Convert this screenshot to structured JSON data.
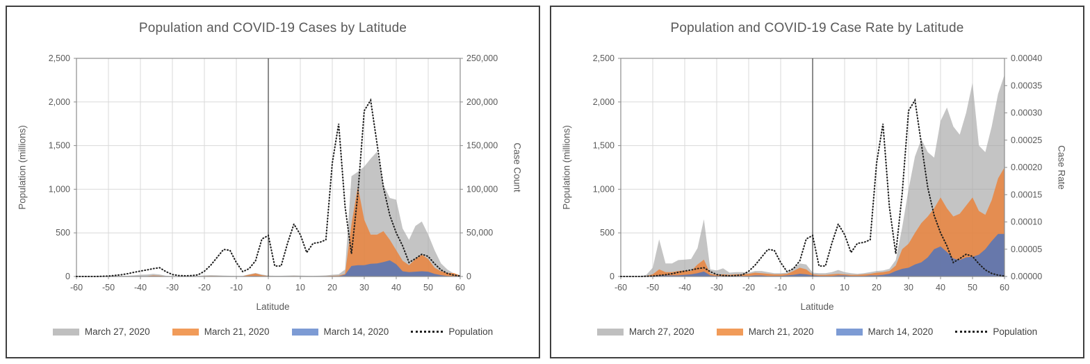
{
  "legend": {
    "items": [
      {
        "label": "March 27, 2020",
        "swatch": "area",
        "color": "#BFBFBF"
      },
      {
        "label": "March 21, 2020",
        "swatch": "area",
        "color": "#F19B59"
      },
      {
        "label": "March 14, 2020",
        "swatch": "area",
        "color": "#7D9BD4"
      },
      {
        "label": "Population",
        "swatch": "dotted",
        "color": "#1F1F1F"
      }
    ]
  },
  "colors": {
    "title_text": "#595959",
    "axis_text": "#595959",
    "grid": "#D9D9D9",
    "plot_border": "#8C8C8C",
    "zero_line": "#404040",
    "area_gray": "rgba(165,165,165,0.65)",
    "area_orange": "rgba(237,125,49,0.78)",
    "area_blue": "rgba(68,114,196,0.78)",
    "population_line": "#1F1F1F"
  },
  "chart_data": [
    {
      "type": "area",
      "title": "Population and COVID-19 Cases by Latitude",
      "xlabel": "Latitude",
      "ylabel_left": "Population (millions)",
      "ylabel_right": "Case Count",
      "grid": "on",
      "legend_position": "bottom",
      "x_axis": {
        "min": -60,
        "max": 60,
        "tick_labels": [
          "-60",
          "-50",
          "-40",
          "-30",
          "-20",
          "-10",
          "0",
          "10",
          "20",
          "30",
          "40",
          "50",
          "60"
        ]
      },
      "left_axis": {
        "min": 0,
        "max": 2500,
        "tick_labels": [
          "0",
          "500",
          "1,000",
          "1,500",
          "2,000",
          "2,500"
        ]
      },
      "right_axis": {
        "min": 0,
        "max": 250000,
        "tick_labels": [
          "0",
          "50,000",
          "100,000",
          "150,000",
          "200,000",
          "250,000"
        ]
      },
      "x": [
        -60,
        -58,
        -56,
        -54,
        -52,
        -50,
        -48,
        -46,
        -44,
        -42,
        -40,
        -38,
        -36,
        -34,
        -32,
        -30,
        -28,
        -26,
        -24,
        -22,
        -20,
        -18,
        -16,
        -14,
        -12,
        -10,
        -8,
        -6,
        -4,
        -2,
        0,
        2,
        4,
        6,
        8,
        10,
        12,
        14,
        16,
        18,
        20,
        22,
        24,
        26,
        28,
        30,
        32,
        34,
        36,
        38,
        40,
        42,
        44,
        46,
        48,
        50,
        52,
        54,
        56,
        58,
        60
      ],
      "series": [
        {
          "name": "March 27, 2020",
          "axis": "right",
          "style": "area",
          "color_key": "area_gray",
          "values": [
            0,
            0,
            0,
            0,
            200,
            500,
            900,
            700,
            800,
            1300,
            2000,
            2200,
            3000,
            2300,
            800,
            400,
            400,
            400,
            500,
            600,
            1200,
            1500,
            1300,
            1000,
            800,
            600,
            700,
            2500,
            4000,
            2200,
            1000,
            800,
            800,
            1000,
            1200,
            1000,
            800,
            700,
            900,
            1200,
            2000,
            2500,
            8000,
            115000,
            120000,
            126000,
            135000,
            143000,
            105000,
            90000,
            88000,
            55000,
            42000,
            58000,
            63000,
            48000,
            30000,
            15000,
            8000,
            3500,
            1500
          ]
        },
        {
          "name": "March 21, 2020",
          "axis": "right",
          "style": "area",
          "color_key": "area_orange",
          "values": [
            0,
            0,
            0,
            0,
            0,
            100,
            300,
            200,
            250,
            350,
            400,
            380,
            1200,
            900,
            200,
            100,
            100,
            100,
            150,
            300,
            500,
            600,
            500,
            400,
            300,
            250,
            400,
            2000,
            3500,
            1500,
            500,
            300,
            300,
            400,
            500,
            400,
            300,
            300,
            400,
            500,
            800,
            1000,
            3000,
            60000,
            103000,
            65000,
            48000,
            48000,
            52000,
            42000,
            30000,
            18000,
            13000,
            20000,
            25000,
            20000,
            10000,
            6000,
            4000,
            4000,
            1000
          ]
        },
        {
          "name": "March 14, 2020",
          "axis": "right",
          "style": "area",
          "color_key": "area_blue",
          "values": [
            0,
            0,
            0,
            0,
            0,
            0,
            100,
            100,
            100,
            100,
            200,
            300,
            500,
            400,
            100,
            0,
            0,
            0,
            100,
            100,
            100,
            200,
            200,
            100,
            100,
            100,
            200,
            500,
            600,
            300,
            200,
            100,
            100,
            100,
            200,
            200,
            100,
            100,
            100,
            200,
            200,
            300,
            2000,
            12000,
            13000,
            13000,
            14500,
            15000,
            16500,
            18500,
            14000,
            6000,
            5000,
            5500,
            6000,
            5500,
            3000,
            1500,
            500,
            200,
            100
          ]
        },
        {
          "name": "Population",
          "axis": "left",
          "style": "dotted",
          "color_key": "population_line",
          "values": [
            0,
            0,
            0,
            0,
            2,
            5,
            12,
            20,
            32,
            48,
            62,
            75,
            90,
            100,
            55,
            22,
            10,
            8,
            10,
            18,
            60,
            130,
            220,
            310,
            300,
            160,
            55,
            90,
            180,
            430,
            470,
            120,
            120,
            380,
            600,
            480,
            275,
            380,
            390,
            420,
            1300,
            1750,
            800,
            260,
            950,
            1900,
            2020,
            1520,
            1020,
            700,
            500,
            350,
            160,
            205,
            255,
            230,
            145,
            75,
            35,
            15,
            5
          ]
        }
      ]
    },
    {
      "type": "area",
      "title": "Population and COVID-19 Case Rate by Latitude",
      "xlabel": "Latitude",
      "ylabel_left": "Population (millions)",
      "ylabel_right": "Case Rate",
      "grid": "on",
      "legend_position": "bottom",
      "x_axis": {
        "min": -60,
        "max": 60,
        "tick_labels": [
          "-60",
          "-50",
          "-40",
          "-30",
          "-20",
          "-10",
          "0",
          "10",
          "20",
          "30",
          "40",
          "50",
          "60"
        ]
      },
      "left_axis": {
        "min": 0,
        "max": 2500,
        "tick_labels": [
          "0",
          "500",
          "1,000",
          "1,500",
          "2,000",
          "2,500"
        ]
      },
      "right_axis": {
        "min": 0,
        "max": 0.0004,
        "tick_labels": [
          "0.00000",
          "0.00005",
          "0.00010",
          "0.00015",
          "0.00020",
          "0.00025",
          "0.00030",
          "0.00035",
          "0.00040"
        ]
      },
      "x": [
        -60,
        -58,
        -56,
        -54,
        -52,
        -50,
        -48,
        -46,
        -44,
        -42,
        -40,
        -38,
        -36,
        -34,
        -32,
        -30,
        -28,
        -26,
        -24,
        -22,
        -20,
        -18,
        -16,
        -14,
        -12,
        -10,
        -8,
        -6,
        -4,
        -2,
        0,
        2,
        4,
        6,
        8,
        10,
        12,
        14,
        16,
        18,
        20,
        22,
        24,
        26,
        28,
        30,
        32,
        34,
        36,
        38,
        40,
        42,
        44,
        46,
        48,
        50,
        52,
        54,
        56,
        58,
        60
      ],
      "series": [
        {
          "name": "March 27, 2020",
          "axis": "right",
          "style": "area",
          "color_key": "area_gray",
          "values": [
            0,
            0,
            0,
            0,
            3e-06,
            1.6e-05,
            6.8e-05,
            2.4e-05,
            2.4e-05,
            3e-05,
            3.1e-05,
            3.2e-05,
            5.2e-05,
            0.000105,
            1.3e-05,
            1.1e-05,
            1.5e-05,
            7e-06,
            8e-06,
            8e-06,
            7e-06,
            1e-05,
            1e-05,
            8e-06,
            6e-06,
            6e-06,
            7e-06,
            1.5e-05,
            2.4e-05,
            2.2e-05,
            7e-06,
            6e-06,
            6e-06,
            8e-06,
            1.2e-05,
            8e-06,
            6e-06,
            5e-06,
            6e-06,
            8e-06,
            1e-05,
            1.1e-05,
            1.4e-05,
            3e-05,
            9e-05,
            0.00016,
            0.00022,
            0.000252,
            0.000228,
            0.000218,
            0.000285,
            0.00031,
            0.000275,
            0.00026,
            0.0003,
            0.000355,
            0.00024,
            0.000228,
            0.000275,
            0.000335,
            0.00037
          ]
        },
        {
          "name": "March 21, 2020",
          "axis": "right",
          "style": "area",
          "color_key": "area_orange",
          "values": [
            0,
            0,
            0,
            0,
            1e-06,
            4e-06,
            1.3e-05,
            8e-06,
            8e-06,
            1e-05,
            1.1e-05,
            1e-05,
            2.2e-05,
            3.1e-05,
            5e-06,
            3e-06,
            4e-06,
            3e-06,
            4e-06,
            4e-06,
            5e-06,
            7e-06,
            6e-06,
            5e-06,
            4e-06,
            4e-06,
            5e-06,
            1e-05,
            1.6e-05,
            1.3e-05,
            4e-06,
            3e-06,
            3e-06,
            4e-06,
            5e-06,
            4e-06,
            3e-06,
            3e-06,
            4e-06,
            5e-06,
            7e-06,
            8e-06,
            1e-05,
            2e-05,
            5e-05,
            6e-05,
            8e-05,
            9.8e-05,
            0.00011,
            0.000125,
            0.000145,
            0.000125,
            0.00011,
            0.000115,
            0.00013,
            0.000145,
            0.00012,
            0.000113,
            0.00014,
            0.00018,
            0.0002
          ]
        },
        {
          "name": "March 14, 2020",
          "axis": "right",
          "style": "area",
          "color_key": "area_blue",
          "values": [
            0,
            0,
            0,
            0,
            0,
            1e-06,
            2e-06,
            2e-06,
            2e-06,
            2e-06,
            3e-06,
            4e-06,
            6e-06,
            9e-06,
            2e-06,
            1e-06,
            1e-06,
            1e-06,
            1e-06,
            1e-06,
            1e-06,
            2e-06,
            2e-06,
            1e-06,
            1e-06,
            1e-06,
            2e-06,
            3e-06,
            5e-06,
            4e-06,
            2e-06,
            1e-06,
            1e-06,
            1e-06,
            2e-06,
            2e-06,
            1e-06,
            1e-06,
            1e-06,
            2e-06,
            2e-06,
            3e-06,
            5e-06,
            1e-05,
            1.4e-05,
            1.6e-05,
            2.2e-05,
            2.6e-05,
            3.5e-05,
            5e-05,
            5.5e-05,
            4.5e-05,
            3.3e-05,
            3e-05,
            3.5e-05,
            3.6e-05,
            4e-05,
            5e-05,
            6.5e-05,
            7.8e-05,
            7.8e-05
          ]
        },
        {
          "name": "Population",
          "axis": "left",
          "style": "dotted",
          "color_key": "population_line",
          "values": [
            0,
            0,
            0,
            0,
            2,
            5,
            12,
            20,
            32,
            48,
            62,
            75,
            90,
            100,
            55,
            22,
            10,
            8,
            10,
            18,
            60,
            130,
            220,
            310,
            300,
            160,
            55,
            90,
            180,
            430,
            470,
            120,
            120,
            380,
            600,
            480,
            275,
            380,
            390,
            420,
            1300,
            1750,
            800,
            260,
            950,
            1900,
            2020,
            1520,
            1020,
            700,
            500,
            350,
            160,
            205,
            255,
            230,
            145,
            75,
            35,
            15,
            5
          ]
        }
      ]
    }
  ]
}
